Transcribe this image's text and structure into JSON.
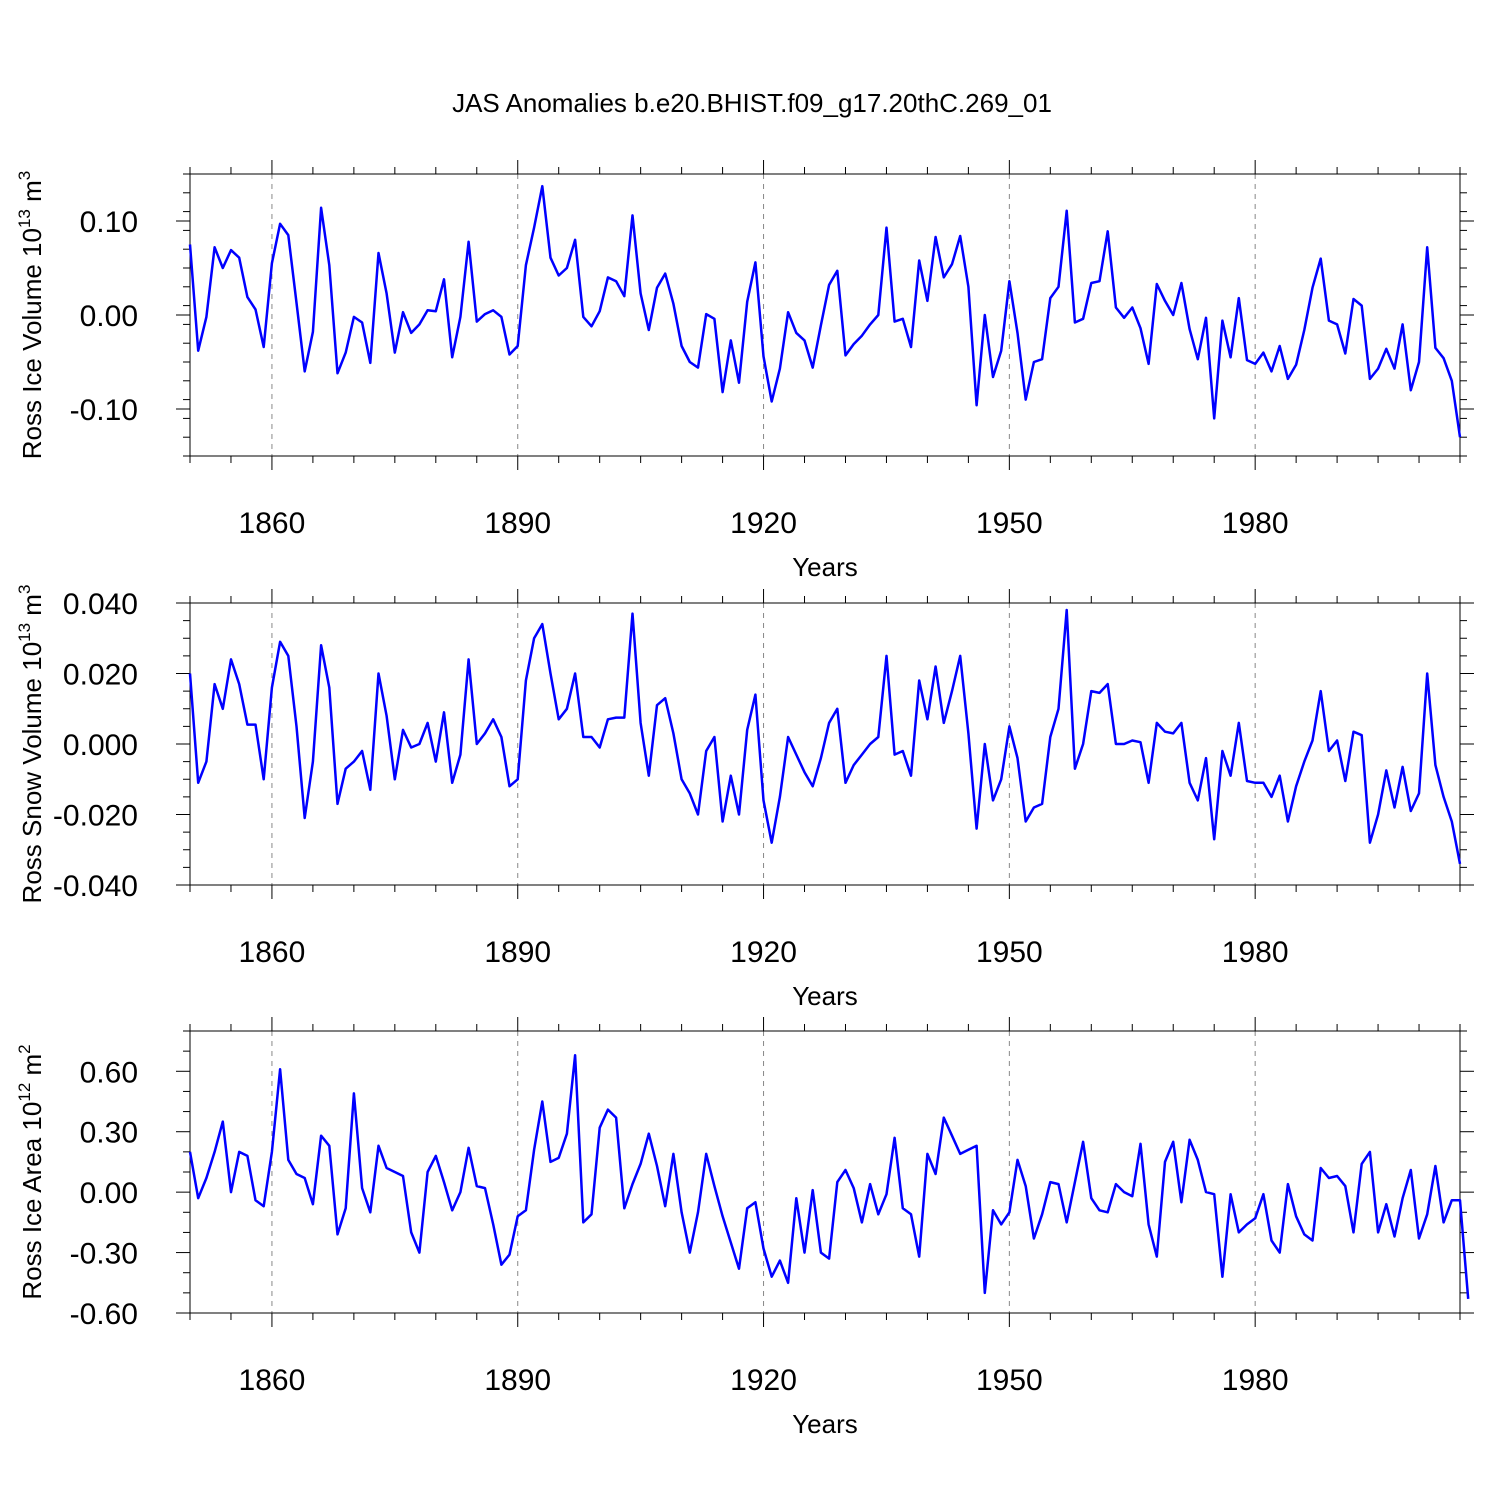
{
  "figure": {
    "title": "JAS Anomalies b.e20.BHIST.f09_g17.20thC.269_01"
  },
  "chart_data": [
    {
      "type": "line",
      "title": "JAS Anomalies b.e20.BHIST.f09_g17.20thC.269_01",
      "xlabel": "Years",
      "ylabel": {
        "base": "Ross Ice Volume 10",
        "exp": "13",
        "unit": " m",
        "unit_exp": "3"
      },
      "xlim": [
        1850,
        2005
      ],
      "ylim": [
        -0.15,
        0.15
      ],
      "xticks": [
        1860,
        1890,
        1920,
        1950,
        1980
      ],
      "xtick_labels": [
        "1860",
        "1890",
        "1920",
        "1950",
        "1980"
      ],
      "yticks": [
        -0.1,
        0.0,
        0.1
      ],
      "ytick_labels": [
        "-0.10",
        "0.00",
        "0.10"
      ],
      "y_minor_step": 0.02,
      "x_minor_step": 5,
      "grid": "dashed vertical at major x ticks",
      "line_color": "#0000ff",
      "series": [
        {
          "name": "Ross Ice Volume",
          "x_start": 1850,
          "x_step": 1,
          "values": [
            0.075,
            -0.038,
            -0.002,
            0.072,
            0.05,
            0.069,
            0.061,
            0.019,
            0.006,
            -0.034,
            0.055,
            0.097,
            0.085,
            0.013,
            -0.06,
            -0.018,
            0.114,
            0.053,
            -0.062,
            -0.04,
            -0.002,
            -0.008,
            -0.051,
            0.066,
            0.023,
            -0.04,
            0.003,
            -0.019,
            -0.01,
            0.005,
            0.004,
            0.038,
            -0.045,
            -0.002,
            0.078,
            -0.007,
            0.001,
            0.005,
            -0.002,
            -0.042,
            -0.033,
            0.053,
            0.093,
            0.137,
            0.061,
            0.042,
            0.05,
            0.08,
            -0.002,
            -0.012,
            0.004,
            0.04,
            0.036,
            0.02,
            0.106,
            0.023,
            -0.016,
            0.029,
            0.044,
            0.012,
            -0.033,
            -0.05,
            -0.056,
            0.001,
            -0.004,
            -0.082,
            -0.027,
            -0.072,
            0.014,
            0.056,
            -0.044,
            -0.092,
            -0.057,
            0.003,
            -0.019,
            -0.027,
            -0.056,
            -0.011,
            0.032,
            0.047,
            -0.043,
            -0.031,
            -0.022,
            -0.01,
            0.0,
            0.093,
            -0.007,
            -0.004,
            -0.034,
            0.058,
            0.015,
            0.083,
            0.04,
            0.054,
            0.084,
            0.03,
            -0.096,
            0.0,
            -0.066,
            -0.038,
            0.036,
            -0.019,
            -0.09,
            -0.05,
            -0.047,
            0.018,
            0.03,
            0.111,
            -0.008,
            -0.004,
            0.034,
            0.036,
            0.089,
            0.008,
            -0.003,
            0.008,
            -0.014,
            -0.052,
            0.033,
            0.015,
            0.0,
            0.034,
            -0.015,
            -0.047,
            -0.003,
            -0.11,
            -0.006,
            -0.045,
            0.018,
            -0.048,
            -0.052,
            -0.04,
            -0.06,
            -0.033,
            -0.068,
            -0.053,
            -0.016,
            0.029,
            0.06,
            -0.006,
            -0.01,
            -0.041,
            0.017,
            0.01,
            -0.068,
            -0.057,
            -0.036,
            -0.057,
            -0.01,
            -0.08,
            -0.05,
            0.072,
            -0.035,
            -0.046,
            -0.07,
            -0.13
          ]
        }
      ]
    },
    {
      "type": "line",
      "title": "",
      "xlabel": "Years",
      "ylabel": {
        "base": "Ross Snow Volume 10",
        "exp": "13",
        "unit": " m",
        "unit_exp": "3"
      },
      "xlim": [
        1850,
        2005
      ],
      "ylim": [
        -0.04,
        0.04
      ],
      "xticks": [
        1860,
        1890,
        1920,
        1950,
        1980
      ],
      "xtick_labels": [
        "1860",
        "1890",
        "1920",
        "1950",
        "1980"
      ],
      "yticks": [
        -0.04,
        -0.02,
        0.0,
        0.02,
        0.04
      ],
      "ytick_labels": [
        "-0.040",
        "-0.020",
        "0.000",
        "0.020",
        "0.040"
      ],
      "y_minor_step": 0.005,
      "x_minor_step": 5,
      "grid": "dashed vertical at major x ticks",
      "line_color": "#0000ff",
      "series": [
        {
          "name": "Ross Snow Volume",
          "x_start": 1850,
          "x_step": 1,
          "values": [
            0.02,
            -0.011,
            -0.005,
            0.017,
            0.01,
            0.024,
            0.017,
            0.0055,
            0.0055,
            -0.01,
            0.016,
            0.029,
            0.025,
            0.005,
            -0.021,
            -0.005,
            0.028,
            0.016,
            -0.017,
            -0.007,
            -0.005,
            -0.002,
            -0.013,
            0.02,
            0.008,
            -0.01,
            0.004,
            -0.001,
            0.0,
            0.006,
            -0.005,
            0.009,
            -0.011,
            -0.003,
            0.024,
            0.0,
            0.003,
            0.007,
            0.002,
            -0.012,
            -0.01,
            0.018,
            0.03,
            0.034,
            0.02,
            0.007,
            0.01,
            0.02,
            0.002,
            0.002,
            -0.001,
            0.007,
            0.0075,
            0.0075,
            0.037,
            0.006,
            -0.009,
            0.011,
            0.013,
            0.003,
            -0.01,
            -0.014,
            -0.02,
            -0.002,
            0.002,
            -0.022,
            -0.009,
            -0.02,
            0.004,
            0.014,
            -0.016,
            -0.028,
            -0.015,
            0.002,
            -0.003,
            -0.008,
            -0.012,
            -0.004,
            0.006,
            0.01,
            -0.011,
            -0.006,
            -0.003,
            0.0,
            0.002,
            0.025,
            -0.003,
            -0.002,
            -0.009,
            0.018,
            0.007,
            0.022,
            0.006,
            0.015,
            0.025,
            0.003,
            -0.024,
            0.0,
            -0.016,
            -0.01,
            0.005,
            -0.004,
            -0.022,
            -0.018,
            -0.017,
            0.002,
            0.01,
            0.038,
            -0.007,
            0.0,
            0.015,
            0.0145,
            0.017,
            0.0,
            0.0,
            0.001,
            0.0005,
            -0.011,
            0.006,
            0.0035,
            0.003,
            0.006,
            -0.011,
            -0.016,
            -0.004,
            -0.027,
            -0.002,
            -0.009,
            0.006,
            -0.0105,
            -0.011,
            -0.011,
            -0.015,
            -0.009,
            -0.022,
            -0.012,
            -0.005,
            0.001,
            0.015,
            -0.002,
            0.001,
            -0.0105,
            0.0035,
            0.0025,
            -0.028,
            -0.02,
            -0.0075,
            -0.018,
            -0.0065,
            -0.019,
            -0.014,
            0.02,
            -0.006,
            -0.015,
            -0.022,
            -0.034
          ]
        }
      ]
    },
    {
      "type": "line",
      "title": "",
      "xlabel": "Years",
      "ylabel": {
        "base": "Ross Ice Area 10",
        "exp": "12",
        "unit": " m",
        "unit_exp": "2"
      },
      "xlim": [
        1850,
        2005
      ],
      "ylim": [
        -0.6,
        0.8
      ],
      "xticks": [
        1860,
        1890,
        1920,
        1950,
        1980
      ],
      "xtick_labels": [
        "1860",
        "1890",
        "1920",
        "1950",
        "1980"
      ],
      "yticks": [
        -0.6,
        -0.3,
        0.0,
        0.3,
        0.6
      ],
      "ytick_labels": [
        "-0.60",
        "-0.30",
        "0.00",
        "0.30",
        "0.60"
      ],
      "y_minor_step": 0.1,
      "x_minor_step": 5,
      "grid": "dashed vertical at major x ticks",
      "line_color": "#0000ff",
      "series": [
        {
          "name": "Ross Ice Area",
          "x_start": 1850,
          "x_step": 1,
          "values": [
            0.2,
            -0.03,
            0.07,
            0.2,
            0.35,
            0.0,
            0.2,
            0.18,
            -0.04,
            -0.07,
            0.2,
            0.61,
            0.16,
            0.09,
            0.07,
            -0.06,
            0.28,
            0.23,
            -0.21,
            -0.08,
            0.49,
            0.02,
            -0.1,
            0.23,
            0.12,
            0.1,
            0.08,
            -0.2,
            -0.3,
            0.1,
            0.18,
            0.05,
            -0.09,
            0.0,
            0.22,
            0.03,
            0.02,
            -0.16,
            -0.36,
            -0.31,
            -0.12,
            -0.09,
            0.21,
            0.45,
            0.15,
            0.17,
            0.29,
            0.68,
            -0.15,
            -0.11,
            0.32,
            0.41,
            0.37,
            -0.08,
            0.04,
            0.14,
            0.29,
            0.13,
            -0.07,
            0.19,
            -0.1,
            -0.3,
            -0.1,
            0.19,
            0.03,
            -0.12,
            -0.25,
            -0.38,
            -0.08,
            -0.05,
            -0.28,
            -0.42,
            -0.34,
            -0.45,
            -0.03,
            -0.3,
            0.01,
            -0.3,
            -0.33,
            0.05,
            0.11,
            0.02,
            -0.15,
            0.04,
            -0.11,
            -0.01,
            0.27,
            -0.08,
            -0.11,
            -0.32,
            0.19,
            0.09,
            0.37,
            0.28,
            0.19,
            0.21,
            0.23,
            -0.5,
            -0.09,
            -0.16,
            -0.1,
            0.16,
            0.03,
            -0.23,
            -0.11,
            0.05,
            0.04,
            -0.15,
            0.05,
            0.25,
            -0.03,
            -0.09,
            -0.1,
            0.04,
            0.0,
            -0.02,
            0.24,
            -0.16,
            -0.32,
            0.15,
            0.25,
            -0.05,
            0.26,
            0.16,
            0.0,
            -0.01,
            -0.42,
            -0.01,
            -0.2,
            -0.16,
            -0.13,
            -0.01,
            -0.24,
            -0.3,
            0.04,
            -0.12,
            -0.21,
            -0.24,
            0.12,
            0.07,
            0.08,
            0.03,
            -0.2,
            0.14,
            0.2,
            -0.2,
            -0.06,
            -0.22,
            -0.03,
            0.11,
            -0.23,
            -0.11,
            0.13,
            -0.15,
            -0.04,
            -0.04,
            -0.53
          ]
        }
      ]
    }
  ]
}
